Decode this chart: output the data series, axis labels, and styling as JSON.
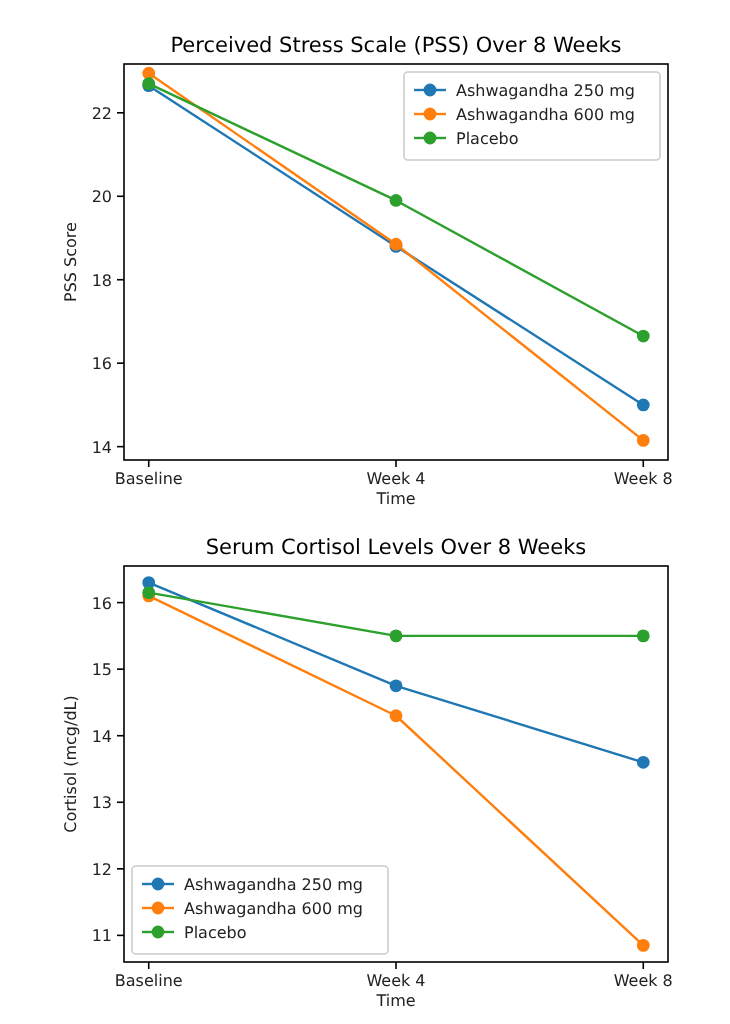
{
  "chart_data": [
    {
      "type": "line",
      "title": "Perceived Stress Scale (PSS) Over 8 Weeks",
      "xlabel": "Time",
      "ylabel": "PSS Score",
      "categories": [
        "Baseline",
        "Week 4",
        "Week 8"
      ],
      "ylim": [
        13.68,
        23.17
      ],
      "yticks": [
        14,
        16,
        18,
        20,
        22
      ],
      "legend": "top right",
      "marker": "circle",
      "series": [
        {
          "name": "Ashwagandha 250 mg",
          "color": "#1f77b4",
          "values": [
            22.65,
            18.8,
            15.0
          ]
        },
        {
          "name": "Ashwagandha 600 mg",
          "color": "#ff7f0e",
          "values": [
            22.95,
            18.85,
            14.15
          ]
        },
        {
          "name": "Placebo",
          "color": "#2ca02c",
          "values": [
            22.7,
            19.9,
            16.65
          ]
        }
      ]
    },
    {
      "type": "line",
      "title": "Serum Cortisol Levels Over 8 Weeks",
      "xlabel": "Time",
      "ylabel": "Cortisol (mcg/dL)",
      "categories": [
        "Baseline",
        "Week 4",
        "Week 8"
      ],
      "ylim": [
        10.6,
        16.55
      ],
      "yticks": [
        11,
        12,
        13,
        14,
        15,
        16
      ],
      "legend": "bottom left",
      "marker": "circle",
      "series": [
        {
          "name": "Ashwagandha 250 mg",
          "color": "#1f77b4",
          "values": [
            16.3,
            14.75,
            13.6
          ]
        },
        {
          "name": "Ashwagandha 600 mg",
          "color": "#ff7f0e",
          "values": [
            16.1,
            14.3,
            10.85
          ]
        },
        {
          "name": "Placebo",
          "color": "#2ca02c",
          "values": [
            16.15,
            15.5,
            15.5
          ]
        }
      ]
    }
  ]
}
